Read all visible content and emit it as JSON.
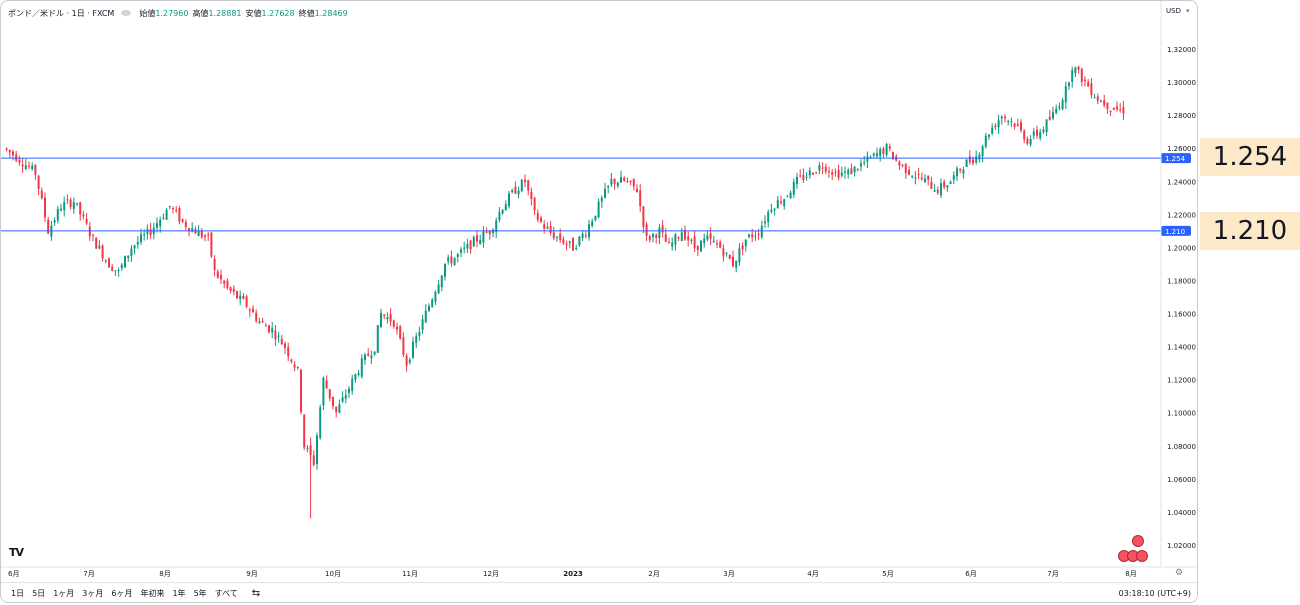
{
  "legend": {
    "symbol": "ポンド／米ドル · 1日 · FXCM",
    "open_label": "始値",
    "open": "1.27960",
    "high_label": "高値",
    "high": "1.28881",
    "low_label": "安値",
    "low": "1.27628",
    "close_label": "終値",
    "close": "1.28469"
  },
  "currency": "USD",
  "timeframes": [
    "1日",
    "5日",
    "1ヶ月",
    "3ヶ月",
    "6ヶ月",
    "年初来",
    "1年",
    "5年",
    "すべて"
  ],
  "clock": "03:18:10 (UTC+9)",
  "logo": "TV",
  "callouts": [
    "1.254",
    "1.210"
  ],
  "colors": {
    "up": "#089981",
    "down": "#f23645",
    "line": "#2962ff",
    "callout_bg": "#fde9c8"
  },
  "icons": {
    "calendar": "calendar-range-icon",
    "gear": "gear-icon",
    "eye": "eye-icon"
  },
  "chart_data": {
    "type": "candlestick",
    "x_tick_labels": [
      "6月",
      "7月",
      "8月",
      "9月",
      "10月",
      "11月",
      "12月",
      "2023",
      "2月",
      "3月",
      "4月",
      "5月",
      "6月",
      "7月",
      "8月"
    ],
    "y_ticks": [
      1.32,
      1.3,
      1.28,
      1.26,
      1.24,
      1.22,
      1.2,
      1.18,
      1.16,
      1.14,
      1.12,
      1.1,
      1.08,
      1.06,
      1.04,
      1.02
    ],
    "y_tick_labels": [
      "1.32000",
      "1.30000",
      "1.28000",
      "1.26000",
      "1.24000",
      "1.22000",
      "1.20000",
      "1.18000",
      "1.16000",
      "1.14000",
      "1.12000",
      "1.10000",
      "1.08000",
      "1.06000",
      "1.04000",
      "1.02000"
    ],
    "ylim": [
      1.01,
      1.335
    ],
    "horizontal_lines": [
      {
        "value": 1.254,
        "label": "1.254"
      },
      {
        "value": 1.21,
        "label": "1.210"
      }
    ],
    "price_path": [
      [
        0,
        1.26
      ],
      [
        4,
        1.255
      ],
      [
        10,
        1.245
      ],
      [
        14,
        1.21
      ],
      [
        18,
        1.225
      ],
      [
        22,
        1.228
      ],
      [
        28,
        1.205
      ],
      [
        33,
        1.19
      ],
      [
        36,
        1.185
      ],
      [
        40,
        1.2
      ],
      [
        46,
        1.21
      ],
      [
        52,
        1.225
      ],
      [
        56,
        1.215
      ],
      [
        60,
        1.21
      ],
      [
        64,
        1.205
      ],
      [
        66,
        1.185
      ],
      [
        70,
        1.175
      ],
      [
        76,
        1.165
      ],
      [
        80,
        1.155
      ],
      [
        84,
        1.15
      ],
      [
        88,
        1.14
      ],
      [
        92,
        1.125
      ],
      [
        94,
        1.08
      ],
      [
        97,
        1.07
      ],
      [
        100,
        1.12
      ],
      [
        104,
        1.1
      ],
      [
        108,
        1.115
      ],
      [
        112,
        1.13
      ],
      [
        116,
        1.14
      ],
      [
        118,
        1.16
      ],
      [
        122,
        1.155
      ],
      [
        126,
        1.13
      ],
      [
        130,
        1.15
      ],
      [
        134,
        1.17
      ],
      [
        138,
        1.19
      ],
      [
        142,
        1.195
      ],
      [
        148,
        1.205
      ],
      [
        152,
        1.21
      ],
      [
        156,
        1.225
      ],
      [
        160,
        1.235
      ],
      [
        163,
        1.24
      ],
      [
        166,
        1.22
      ],
      [
        170,
        1.21
      ],
      [
        174,
        1.205
      ],
      [
        178,
        1.2
      ],
      [
        182,
        1.21
      ],
      [
        186,
        1.225
      ],
      [
        190,
        1.24
      ],
      [
        194,
        1.24
      ],
      [
        198,
        1.235
      ],
      [
        201,
        1.205
      ],
      [
        205,
        1.21
      ],
      [
        208,
        1.2
      ],
      [
        212,
        1.21
      ],
      [
        216,
        1.2
      ],
      [
        220,
        1.205
      ],
      [
        224,
        1.2
      ],
      [
        228,
        1.19
      ],
      [
        232,
        1.205
      ],
      [
        236,
        1.21
      ],
      [
        240,
        1.225
      ],
      [
        244,
        1.23
      ],
      [
        248,
        1.24
      ],
      [
        252,
        1.245
      ],
      [
        256,
        1.25
      ],
      [
        260,
        1.245
      ],
      [
        264,
        1.245
      ],
      [
        268,
        1.25
      ],
      [
        272,
        1.255
      ],
      [
        276,
        1.26
      ],
      [
        280,
        1.25
      ],
      [
        284,
        1.245
      ],
      [
        288,
        1.24
      ],
      [
        292,
        1.235
      ],
      [
        296,
        1.24
      ],
      [
        300,
        1.25
      ],
      [
        304,
        1.255
      ],
      [
        308,
        1.27
      ],
      [
        312,
        1.28
      ],
      [
        316,
        1.275
      ],
      [
        320,
        1.265
      ],
      [
        324,
        1.27
      ],
      [
        328,
        1.28
      ],
      [
        332,
        1.295
      ],
      [
        334,
        1.31
      ],
      [
        338,
        1.3
      ],
      [
        342,
        1.29
      ],
      [
        346,
        1.285
      ],
      [
        349,
        1.283
      ]
    ]
  }
}
